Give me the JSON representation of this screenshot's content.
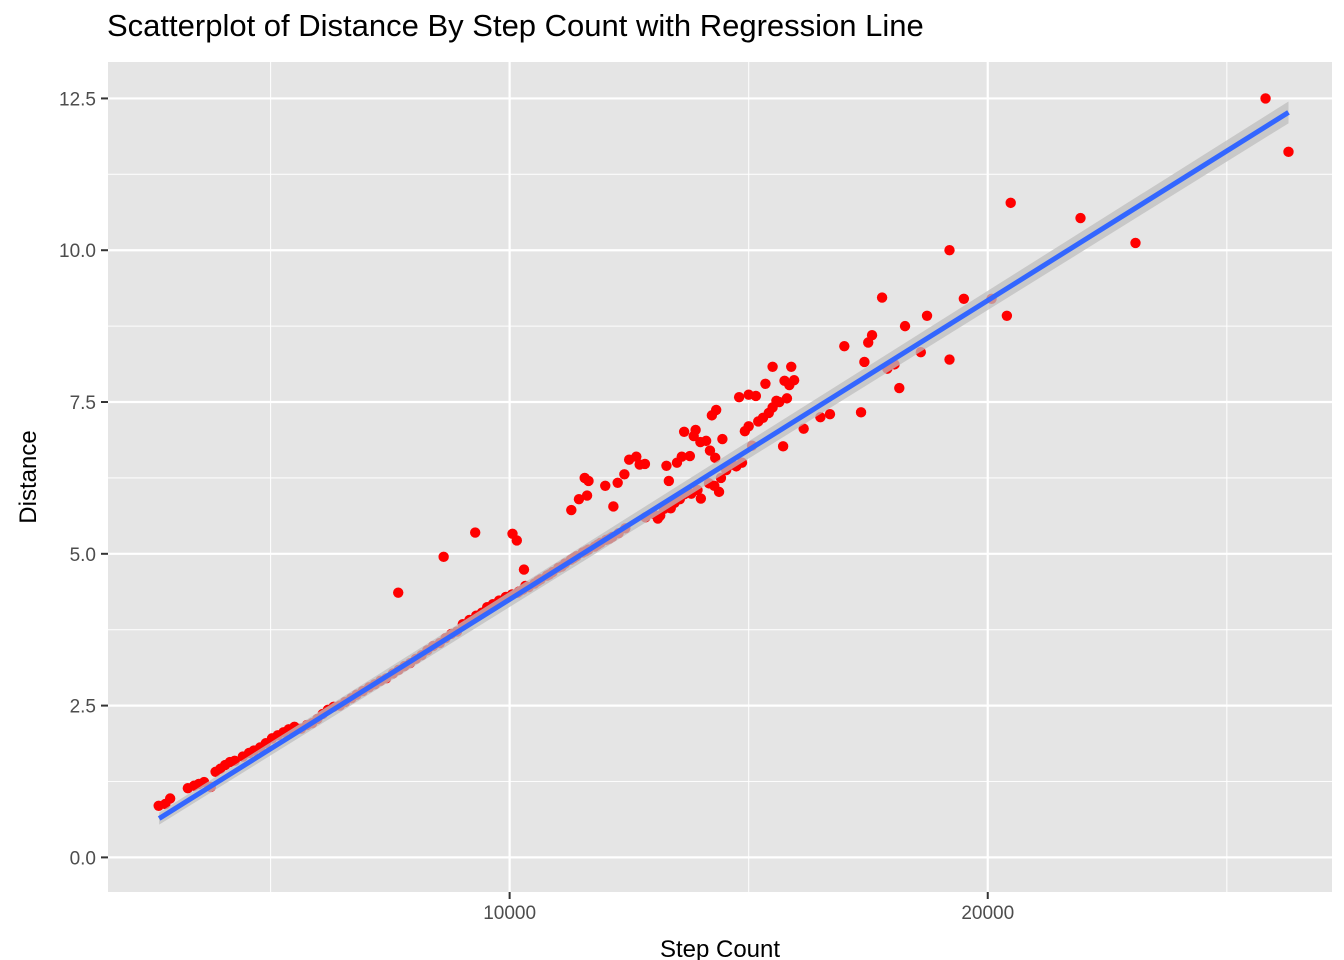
{
  "chart_data": {
    "type": "scatter",
    "title": "Scatterplot of Distance By Step Count with Regression Line",
    "xlabel": "Step Count",
    "ylabel": "Distance",
    "xlim": [
      1600,
      27200
    ],
    "ylim": [
      -0.57,
      13.1
    ],
    "x_ticks": [
      10000,
      20000
    ],
    "x_tick_labels": [
      "10000",
      "20000"
    ],
    "y_ticks": [
      0,
      2.5,
      5,
      7.5,
      10,
      12.5
    ],
    "y_tick_labels": [
      "0.0",
      "2.5",
      "5.0",
      "7.5",
      "10.0",
      "12.5"
    ],
    "grid": true,
    "point_color": "#ff0000",
    "line_color": "#3366ff",
    "band_color": "#bdbdbd",
    "panel_background": "#e5e5e5",
    "regression": {
      "x": [
        2670,
        26290
      ],
      "y": [
        0.64,
        12.27
      ],
      "se_band": [
        0.1,
        0.18
      ]
    },
    "series": [
      {
        "values": [
          [
            2660,
            0.85
          ],
          [
            2800,
            0.88
          ],
          [
            2900,
            0.97
          ],
          [
            3270,
            1.14
          ],
          [
            3400,
            1.18
          ],
          [
            3500,
            1.21
          ],
          [
            3610,
            1.24
          ],
          [
            3750,
            1.16
          ],
          [
            3850,
            1.41
          ],
          [
            3950,
            1.46
          ],
          [
            4050,
            1.52
          ],
          [
            4150,
            1.57
          ],
          [
            4250,
            1.59
          ],
          [
            4420,
            1.66
          ],
          [
            4550,
            1.72
          ],
          [
            4650,
            1.76
          ],
          [
            4780,
            1.81
          ],
          [
            4900,
            1.88
          ],
          [
            5030,
            1.96
          ],
          [
            5150,
            2.01
          ],
          [
            5270,
            2.06
          ],
          [
            5380,
            2.11
          ],
          [
            5500,
            2.15
          ],
          [
            5640,
            2.12
          ],
          [
            5760,
            2.18
          ],
          [
            5870,
            2.21
          ],
          [
            5980,
            2.28
          ],
          [
            6090,
            2.36
          ],
          [
            6200,
            2.43
          ],
          [
            6320,
            2.48
          ],
          [
            6450,
            2.5
          ],
          [
            6560,
            2.56
          ],
          [
            6690,
            2.62
          ],
          [
            6800,
            2.68
          ],
          [
            6930,
            2.74
          ],
          [
            7060,
            2.8
          ],
          [
            7180,
            2.85
          ],
          [
            7300,
            2.91
          ],
          [
            7420,
            2.95
          ],
          [
            7560,
            3.03
          ],
          [
            7680,
            3.09
          ],
          [
            7800,
            3.15
          ],
          [
            7920,
            3.2
          ],
          [
            8040,
            3.27
          ],
          [
            8160,
            3.33
          ],
          [
            8280,
            3.41
          ],
          [
            8400,
            3.48
          ],
          [
            8540,
            3.53
          ],
          [
            8660,
            3.61
          ],
          [
            8780,
            3.68
          ],
          [
            8900,
            3.72
          ],
          [
            9020,
            3.84
          ],
          [
            9160,
            3.91
          ],
          [
            9300,
            3.98
          ],
          [
            9420,
            4.03
          ],
          [
            9530,
            4.12
          ],
          [
            9650,
            4.17
          ],
          [
            9780,
            4.23
          ],
          [
            9920,
            4.29
          ],
          [
            10050,
            4.33
          ],
          [
            10170,
            4.36
          ],
          [
            10280,
            4.41
          ],
          [
            10400,
            4.45
          ],
          [
            10520,
            4.51
          ],
          [
            10650,
            4.58
          ],
          [
            10780,
            4.64
          ],
          [
            10900,
            4.7
          ],
          [
            11020,
            4.77
          ],
          [
            11160,
            4.84
          ],
          [
            11280,
            4.9
          ],
          [
            11400,
            4.96
          ],
          [
            11530,
            5.02
          ],
          [
            11650,
            5.07
          ],
          [
            11780,
            5.12
          ],
          [
            11900,
            5.18
          ],
          [
            12020,
            5.23
          ],
          [
            12150,
            5.28
          ],
          [
            12280,
            5.34
          ],
          [
            12420,
            5.42
          ],
          [
            10200,
            4.38
          ],
          [
            10330,
            4.47
          ],
          [
            10590,
            4.55
          ],
          [
            10830,
            4.66
          ],
          [
            11090,
            4.79
          ],
          [
            11340,
            4.93
          ],
          [
            11590,
            5.04
          ],
          [
            11840,
            5.15
          ],
          [
            12090,
            5.25
          ],
          [
            7670,
            4.36
          ],
          [
            8620,
            4.95
          ],
          [
            9280,
            5.35
          ],
          [
            10060,
            5.33
          ],
          [
            10150,
            5.22
          ],
          [
            10300,
            4.74
          ],
          [
            11290,
            5.72
          ],
          [
            11450,
            5.9
          ],
          [
            11570,
            6.25
          ],
          [
            11650,
            6.2
          ],
          [
            11620,
            5.96
          ],
          [
            12000,
            6.12
          ],
          [
            12170,
            5.78
          ],
          [
            12260,
            6.17
          ],
          [
            12400,
            6.31
          ],
          [
            12500,
            6.55
          ],
          [
            12650,
            6.6
          ],
          [
            12720,
            6.47
          ],
          [
            12830,
            6.48
          ],
          [
            12840,
            5.6
          ],
          [
            13000,
            5.66
          ],
          [
            13100,
            5.58
          ],
          [
            13150,
            5.63
          ],
          [
            13230,
            5.74
          ],
          [
            13330,
            5.79
          ],
          [
            13370,
            5.75
          ],
          [
            13450,
            5.84
          ],
          [
            13560,
            5.9
          ],
          [
            13650,
            5.98
          ],
          [
            13800,
            5.99
          ],
          [
            13930,
            6.05
          ],
          [
            14000,
            5.91
          ],
          [
            14170,
            6.16
          ],
          [
            14280,
            6.12
          ],
          [
            14380,
            6.02
          ],
          [
            14420,
            6.25
          ],
          [
            14530,
            6.38
          ],
          [
            14650,
            6.47
          ],
          [
            14740,
            6.44
          ],
          [
            14860,
            6.5
          ],
          [
            14920,
            7.02
          ],
          [
            15000,
            7.1
          ],
          [
            15070,
            6.78
          ],
          [
            15200,
            7.18
          ],
          [
            15300,
            7.24
          ],
          [
            15420,
            7.32
          ],
          [
            15500,
            7.41
          ],
          [
            15640,
            7.5
          ],
          [
            15720,
            6.77
          ],
          [
            15800,
            7.56
          ],
          [
            15950,
            7.86
          ],
          [
            16150,
            7.06
          ],
          [
            16500,
            7.25
          ],
          [
            16700,
            7.3
          ],
          [
            13280,
            6.45
          ],
          [
            13330,
            6.2
          ],
          [
            13500,
            6.5
          ],
          [
            13600,
            6.6
          ],
          [
            13650,
            7.01
          ],
          [
            13770,
            6.61
          ],
          [
            13850,
            6.94
          ],
          [
            13890,
            7.04
          ],
          [
            13990,
            6.84
          ],
          [
            14110,
            6.86
          ],
          [
            14190,
            6.7
          ],
          [
            14300,
            6.58
          ],
          [
            14230,
            7.28
          ],
          [
            14320,
            7.37
          ],
          [
            14450,
            6.89
          ],
          [
            14800,
            7.58
          ],
          [
            15000,
            7.62
          ],
          [
            15150,
            7.6
          ],
          [
            15350,
            7.8
          ],
          [
            15500,
            8.08
          ],
          [
            15580,
            7.52
          ],
          [
            15750,
            7.85
          ],
          [
            15890,
            8.08
          ],
          [
            15850,
            7.78
          ],
          [
            17000,
            8.42
          ],
          [
            17350,
            7.33
          ],
          [
            17420,
            8.16
          ],
          [
            17500,
            8.48
          ],
          [
            17580,
            8.6
          ],
          [
            17790,
            9.22
          ],
          [
            17900,
            8.05
          ],
          [
            18050,
            8.12
          ],
          [
            18150,
            7.73
          ],
          [
            18270,
            8.75
          ],
          [
            18600,
            8.32
          ],
          [
            18730,
            8.92
          ],
          [
            19200,
            10.0
          ],
          [
            19200,
            8.2
          ],
          [
            19500,
            9.2
          ],
          [
            20080,
            9.2
          ],
          [
            20400,
            8.92
          ],
          [
            20480,
            10.78
          ],
          [
            21940,
            10.53
          ],
          [
            23090,
            10.12
          ],
          [
            25810,
            12.5
          ],
          [
            26290,
            11.62
          ]
        ]
      }
    ]
  }
}
